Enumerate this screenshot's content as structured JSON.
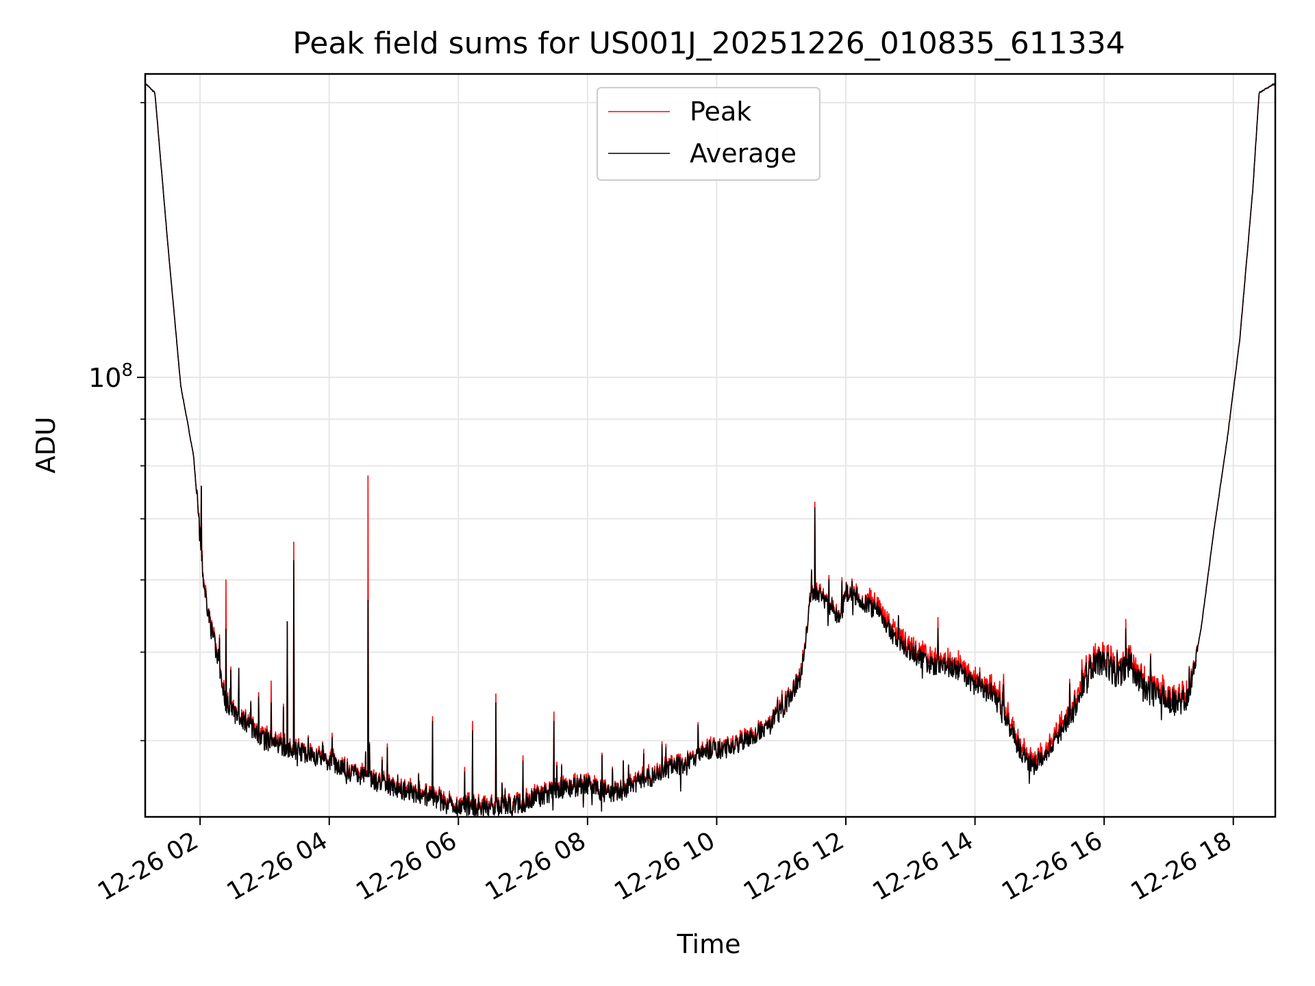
{
  "chart_data": {
    "type": "line",
    "title": "Peak field sums for US001J_20251226_010835_611334",
    "xlabel": "Time",
    "ylabel": "ADU",
    "y_scale": "log",
    "y_tick_label": {
      "base": "10",
      "exponent": "8",
      "value": 100000000
    },
    "ylim": [
      33000000,
      215000000
    ],
    "xlim_hours": [
      1.15,
      18.65
    ],
    "x_tick_hours": [
      2,
      4,
      6,
      8,
      10,
      12,
      14,
      16,
      18
    ],
    "x_tick_labels": [
      "12-26 02",
      "12-26 04",
      "12-26 06",
      "12-26 08",
      "12-26 10",
      "12-26 12",
      "12-26 14",
      "12-26 16",
      "12-26 18"
    ],
    "grid": true,
    "legend_position": "top-center",
    "series": [
      {
        "name": "Peak",
        "color": "#ff0000"
      },
      {
        "name": "Average",
        "color": "#000000"
      }
    ],
    "average_curve": [
      [
        1.15,
        210000000
      ],
      [
        1.3,
        205000000
      ],
      [
        1.5,
        140000000
      ],
      [
        1.7,
        98000000
      ],
      [
        1.9,
        82000000
      ],
      [
        2.05,
        60000000
      ],
      [
        2.15,
        54000000
      ],
      [
        2.3,
        48000000
      ],
      [
        2.4,
        44000000
      ],
      [
        2.5,
        43000000
      ],
      [
        2.7,
        42000000
      ],
      [
        3.0,
        40000000
      ],
      [
        3.5,
        39000000
      ],
      [
        4.0,
        38000000
      ],
      [
        4.5,
        36500000
      ],
      [
        5.0,
        35500000
      ],
      [
        5.5,
        34800000
      ],
      [
        6.0,
        34000000
      ],
      [
        6.5,
        33800000
      ],
      [
        7.0,
        34200000
      ],
      [
        7.5,
        35200000
      ],
      [
        8.0,
        35800000
      ],
      [
        8.3,
        35000000
      ],
      [
        8.6,
        35500000
      ],
      [
        9.0,
        36500000
      ],
      [
        9.5,
        37800000
      ],
      [
        9.8,
        39000000
      ],
      [
        10.2,
        39200000
      ],
      [
        10.6,
        40500000
      ],
      [
        11.0,
        43000000
      ],
      [
        11.3,
        47000000
      ],
      [
        11.45,
        57000000
      ],
      [
        11.55,
        58000000
      ],
      [
        11.7,
        57000000
      ],
      [
        11.9,
        54500000
      ],
      [
        12.0,
        57500000
      ],
      [
        12.1,
        58500000
      ],
      [
        12.2,
        57000000
      ],
      [
        12.5,
        55500000
      ],
      [
        12.7,
        52500000
      ],
      [
        13.0,
        50000000
      ],
      [
        13.3,
        48500000
      ],
      [
        13.7,
        48000000
      ],
      [
        14.0,
        46000000
      ],
      [
        14.3,
        45000000
      ],
      [
        14.5,
        42000000
      ],
      [
        14.7,
        39000000
      ],
      [
        14.9,
        37500000
      ],
      [
        15.2,
        39500000
      ],
      [
        15.5,
        43000000
      ],
      [
        15.8,
        48000000
      ],
      [
        16.0,
        49000000
      ],
      [
        16.1,
        48000000
      ],
      [
        16.2,
        47000000
      ],
      [
        16.4,
        48500000
      ],
      [
        16.6,
        45500000
      ],
      [
        16.8,
        45000000
      ],
      [
        17.0,
        44000000
      ],
      [
        17.3,
        44500000
      ],
      [
        17.5,
        53000000
      ],
      [
        17.7,
        68000000
      ],
      [
        17.9,
        85000000
      ],
      [
        18.1,
        110000000
      ],
      [
        18.3,
        160000000
      ],
      [
        18.4,
        205000000
      ],
      [
        18.65,
        210000000
      ]
    ],
    "spikes": [
      {
        "hour": 2.02,
        "peak": 76000000,
        "average": 76000000
      },
      {
        "hour": 2.4,
        "peak": 60000000,
        "average": 53000000
      },
      {
        "hour": 2.6,
        "peak": 48000000,
        "average": 48000000
      },
      {
        "hour": 3.1,
        "peak": 46500000,
        "average": 44000000
      },
      {
        "hour": 3.35,
        "peak": 54000000,
        "average": 54000000
      },
      {
        "hour": 3.45,
        "peak": 66000000,
        "average": 63000000
      },
      {
        "hour": 4.6,
        "peak": 78000000,
        "average": 57000000
      },
      {
        "hour": 5.6,
        "peak": 42500000,
        "average": 42000000
      },
      {
        "hour": 6.22,
        "peak": 42000000,
        "average": 41000000
      },
      {
        "hour": 6.58,
        "peak": 45000000,
        "average": 44000000
      },
      {
        "hour": 7.0,
        "peak": 38500000,
        "average": 38000000
      },
      {
        "hour": 7.48,
        "peak": 43000000,
        "average": 42000000
      },
      {
        "hour": 11.52,
        "peak": 73000000,
        "average": 72000000
      }
    ]
  }
}
